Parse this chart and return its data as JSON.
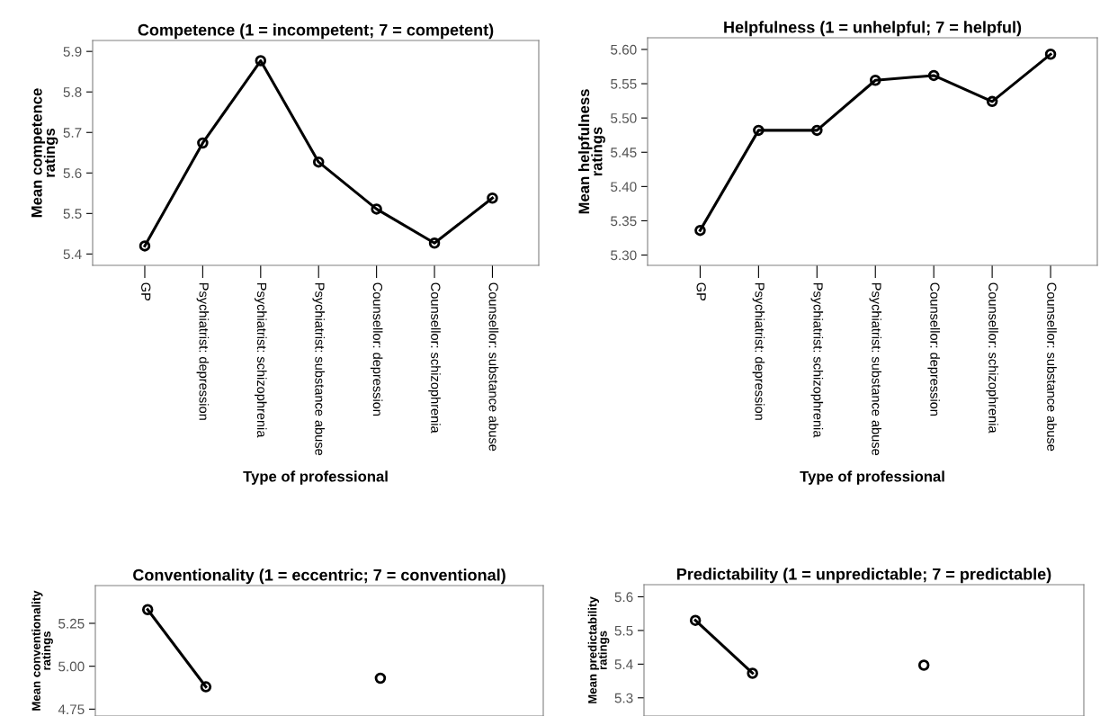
{
  "chart_data": [
    {
      "type": "line",
      "title": "Competence (1 = incompetent; 7 = competent)",
      "xlabel": "Type of professional",
      "ylabel": "Mean competence ratings",
      "categories": [
        "GP",
        "Psychiatrist: depression",
        "Psychiatrist: schizophrenia",
        "Psychiatrist: substance abuse",
        "Counsellor: depression",
        "Counsellor: schizophrenia",
        "Counsellor: substance abuse"
      ],
      "series": [
        {
          "color": "#000000",
          "values": [
            5.42,
            5.674,
            5.877,
            5.627,
            5.511,
            5.427,
            5.538
          ]
        }
      ],
      "ylim": [
        5.372,
        5.927
      ],
      "yticks": [
        5.4,
        5.5,
        5.6,
        5.7,
        5.8,
        5.9
      ],
      "grid": false,
      "marker": "circle",
      "line_style": "solid"
    },
    {
      "type": "line",
      "title": "Helpfulness (1 = unhelpful; 7 = helpful)",
      "xlabel": "Type of professional",
      "ylabel": "Mean helpfulness ratings",
      "categories": [
        "GP",
        "Psychiatrist: depression",
        "Psychiatrist: schizophrenia",
        "Psychiatrist: substance abuse",
        "Counsellor: depression",
        "Counsellor: schizophrenia",
        "Counsellor: substance abuse"
      ],
      "series": [
        {
          "color": "#000000",
          "values": [
            5.336,
            5.482,
            5.482,
            5.555,
            5.562,
            5.524,
            5.593
          ]
        }
      ],
      "ylim": [
        5.285,
        5.617
      ],
      "yticks": [
        {
          "value": 5.3,
          "label": "5.30"
        },
        {
          "value": 5.35,
          "label": "5.35"
        },
        {
          "value": 5.4,
          "label": "5.40"
        },
        {
          "value": 5.45,
          "label": "5.45"
        },
        {
          "value": 5.5,
          "label": "5.50"
        },
        {
          "value": 5.55,
          "label": "5.55"
        },
        {
          "value": 5.6,
          "label": "5.60"
        }
      ],
      "grid": false,
      "marker": "circle",
      "line_style": "solid"
    },
    {
      "type": "line",
      "title": "Conventionality (1 = eccentric; 7 = conventional)",
      "ylabel": "Mean conventionality ratings",
      "categories": [
        null,
        null,
        null,
        null,
        null,
        null,
        null
      ],
      "series": [
        {
          "color": "#000000",
          "values": [
            5.33,
            4.88,
            null,
            null,
            4.93,
            null,
            null
          ]
        }
      ],
      "ylim": [
        4.71,
        5.47
      ],
      "yticks": [
        4.75,
        {
          "value": 5.0,
          "label": "5.00"
        },
        5.25
      ],
      "tick_labels": "y",
      "grid": false,
      "marker": "circle",
      "line_style": "solid"
    },
    {
      "type": "line",
      "title": "Predictability (1 = unpredictable; 7 = predictable)",
      "ylabel": "Mean predictability ratings",
      "categories": [
        null,
        null,
        null,
        null,
        null,
        null,
        null
      ],
      "series": [
        {
          "color": "#000000",
          "values": [
            5.53,
            5.373,
            null,
            null,
            5.397,
            null,
            null
          ]
        }
      ],
      "ylim": [
        5.246,
        5.636
      ],
      "yticks": [
        5.3,
        5.4,
        5.5,
        5.6
      ],
      "tick_labels": "y",
      "grid": false,
      "marker": "circle",
      "line_style": "solid"
    }
  ]
}
